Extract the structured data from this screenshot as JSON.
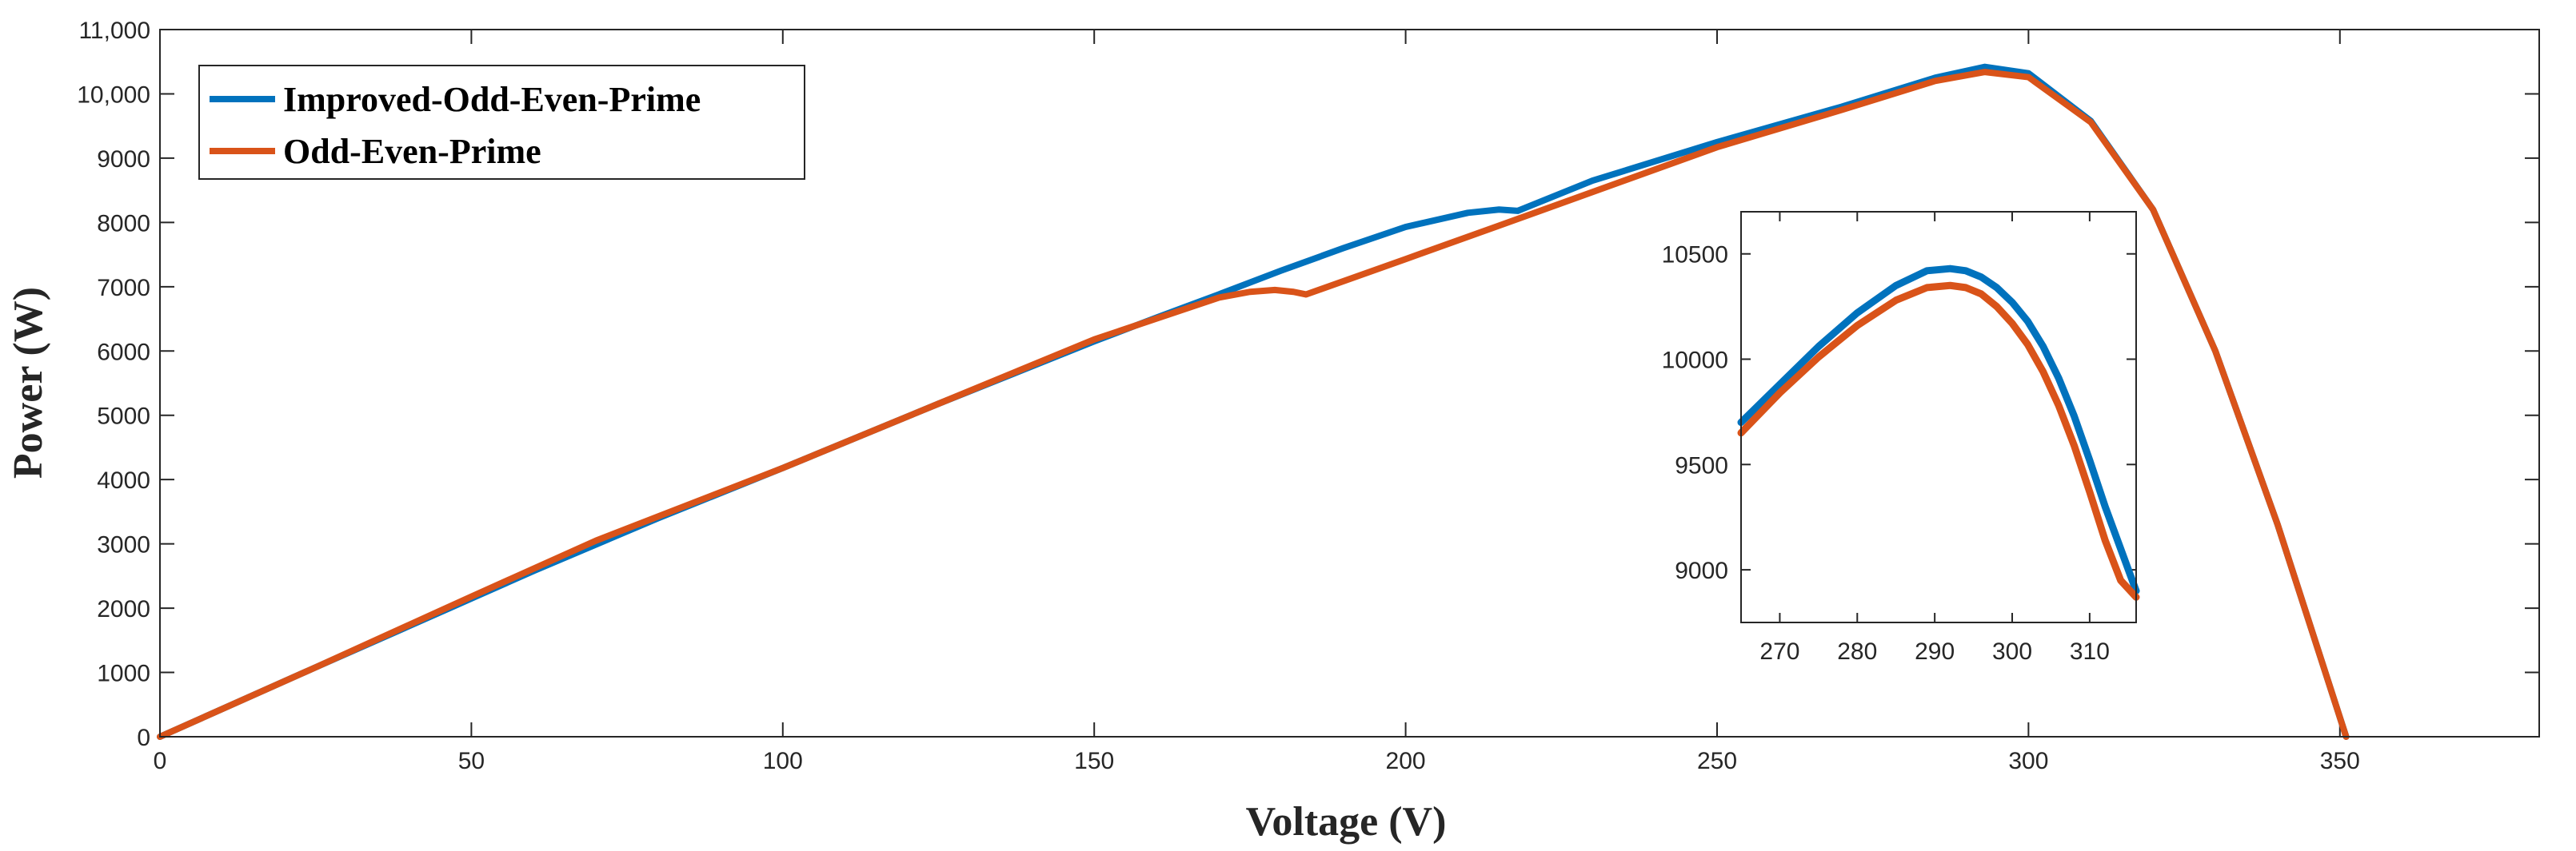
{
  "chart_data": [
    {
      "type": "line",
      "role": "main",
      "title": "",
      "xlabel": "Voltage (V)",
      "ylabel": "Power (W)",
      "xlim": [
        0,
        382
      ],
      "ylim": [
        0,
        11000
      ],
      "xticks": [
        0,
        50,
        100,
        150,
        200,
        250,
        300,
        350
      ],
      "xtick_labels": [
        "0",
        "50",
        "100",
        "150",
        "200",
        "250",
        "300",
        "350"
      ],
      "yticks": [
        0,
        1000,
        2000,
        3000,
        4000,
        5000,
        6000,
        7000,
        8000,
        9000,
        10000,
        11000
      ],
      "ytick_labels": [
        "0",
        "1000",
        "2000",
        "3000",
        "4000",
        "5000",
        "6000",
        "7000",
        "8000",
        "9000",
        "10,000",
        "11,000"
      ],
      "grid": false,
      "legend_position": "top-left",
      "series": [
        {
          "name": "Improved-Odd-Even-Prime",
          "color": "#0072BD",
          "x": [
            0,
            25,
            50,
            60,
            80,
            100,
            125,
            150,
            160,
            170,
            180,
            190,
            200,
            210,
            215,
            218,
            230,
            250,
            270,
            285,
            293,
            300,
            310,
            320,
            330,
            340,
            347,
            351
          ],
          "y": [
            0,
            1080,
            2150,
            2580,
            3400,
            4180,
            5180,
            6150,
            6520,
            6880,
            7250,
            7600,
            7930,
            8150,
            8200,
            8180,
            8650,
            9250,
            9800,
            10250,
            10420,
            10320,
            9580,
            8200,
            6000,
            3300,
            1200,
            0
          ]
        },
        {
          "name": "Odd-Even-Prime",
          "color": "#D95319",
          "x": [
            0,
            25,
            50,
            70,
            100,
            125,
            150,
            170,
            175,
            179,
            182,
            184,
            200,
            215,
            250,
            270,
            285,
            293,
            300,
            310,
            320,
            330,
            340,
            347,
            351
          ],
          "y": [
            0,
            1080,
            2180,
            3050,
            4180,
            5180,
            6180,
            6830,
            6920,
            6950,
            6920,
            6880,
            7430,
            7950,
            9170,
            9750,
            10200,
            10340,
            10260,
            9560,
            8200,
            6000,
            3300,
            1200,
            0
          ]
        }
      ]
    },
    {
      "type": "line",
      "role": "inset",
      "title": "",
      "xlabel": "",
      "ylabel": "",
      "xlim": [
        265,
        316
      ],
      "ylim": [
        8750,
        10700
      ],
      "xticks": [
        270,
        280,
        290,
        300,
        310
      ],
      "xtick_labels": [
        "270",
        "280",
        "290",
        "300",
        "310"
      ],
      "yticks": [
        9000,
        9500,
        10000,
        10500
      ],
      "ytick_labels": [
        "9000",
        "9500",
        "10000",
        "10500"
      ],
      "grid": false,
      "series": [
        {
          "name": "Improved-Odd-Even-Prime",
          "color": "#0072BD",
          "x": [
            265,
            270,
            275,
            280,
            285,
            289,
            292,
            294,
            296,
            298,
            300,
            302,
            304,
            306,
            308,
            310,
            312,
            314,
            316
          ],
          "y": [
            9700,
            9880,
            10060,
            10220,
            10350,
            10420,
            10430,
            10420,
            10390,
            10340,
            10270,
            10180,
            10060,
            9910,
            9730,
            9520,
            9300,
            9100,
            8900
          ]
        },
        {
          "name": "Odd-Even-Prime",
          "color": "#D95319",
          "x": [
            265,
            270,
            275,
            280,
            285,
            289,
            292,
            294,
            296,
            298,
            300,
            302,
            304,
            306,
            308,
            310,
            312,
            314,
            316
          ],
          "y": [
            9650,
            9840,
            10010,
            10160,
            10280,
            10340,
            10350,
            10340,
            10310,
            10250,
            10170,
            10070,
            9940,
            9780,
            9590,
            9370,
            9140,
            8950,
            8870
          ]
        }
      ]
    }
  ]
}
